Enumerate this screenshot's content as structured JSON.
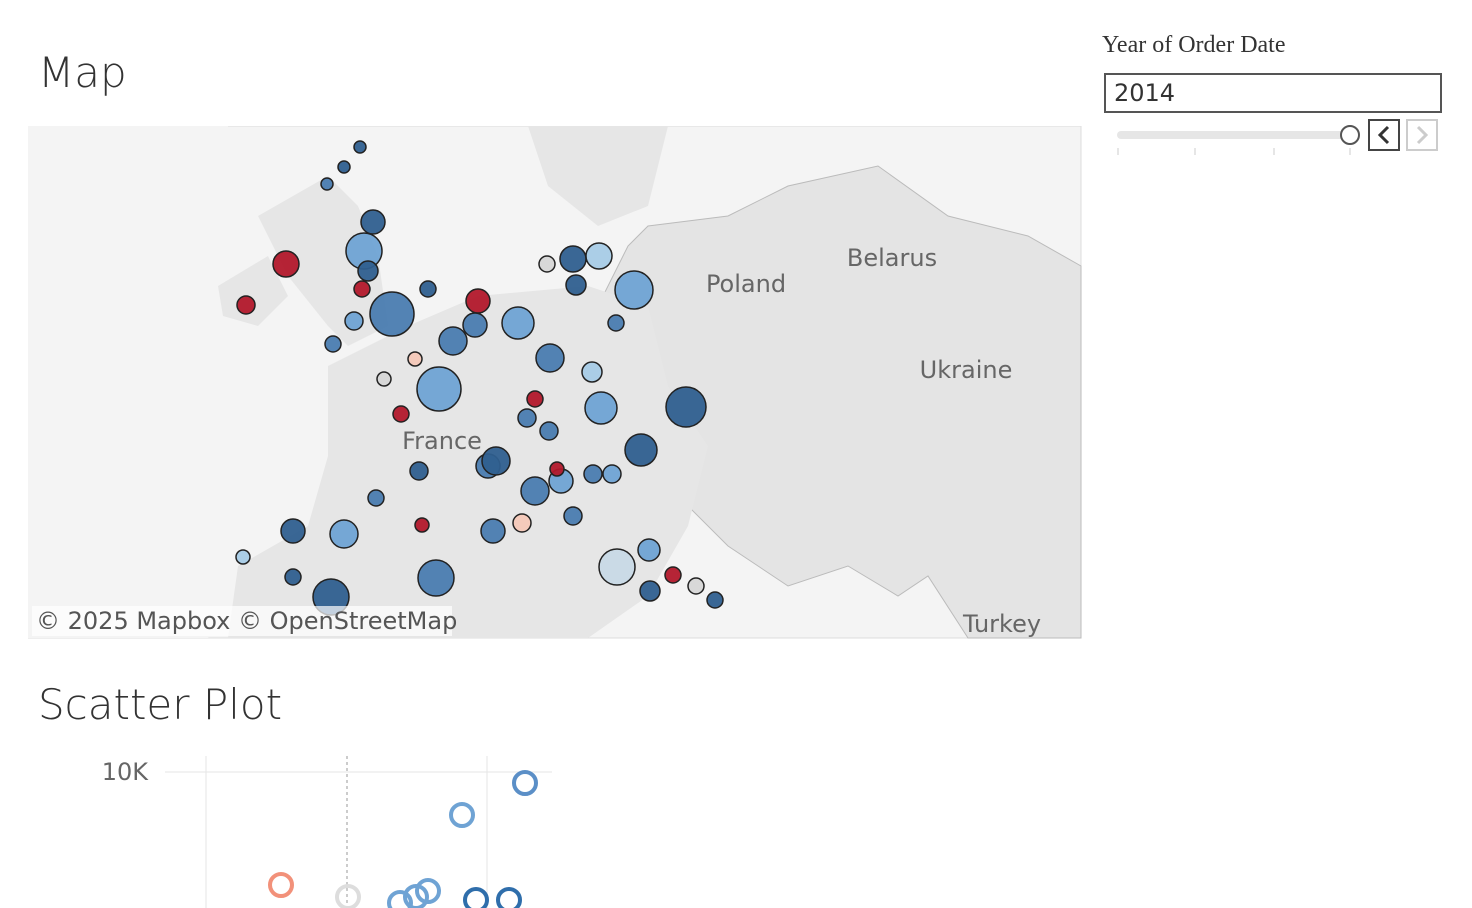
{
  "map": {
    "title": "Map",
    "labels": [
      "Poland",
      "Belarus",
      "Ukraine",
      "France",
      "Turkey"
    ],
    "attribution": "© 2025 Mapbox  © OpenStreetMap"
  },
  "filter": {
    "label": "Year of Order Date",
    "value": "2014"
  },
  "scatter": {
    "title": "Scatter Plot",
    "yticks": [
      {
        "value": 10000,
        "label": "10K"
      }
    ]
  }
}
